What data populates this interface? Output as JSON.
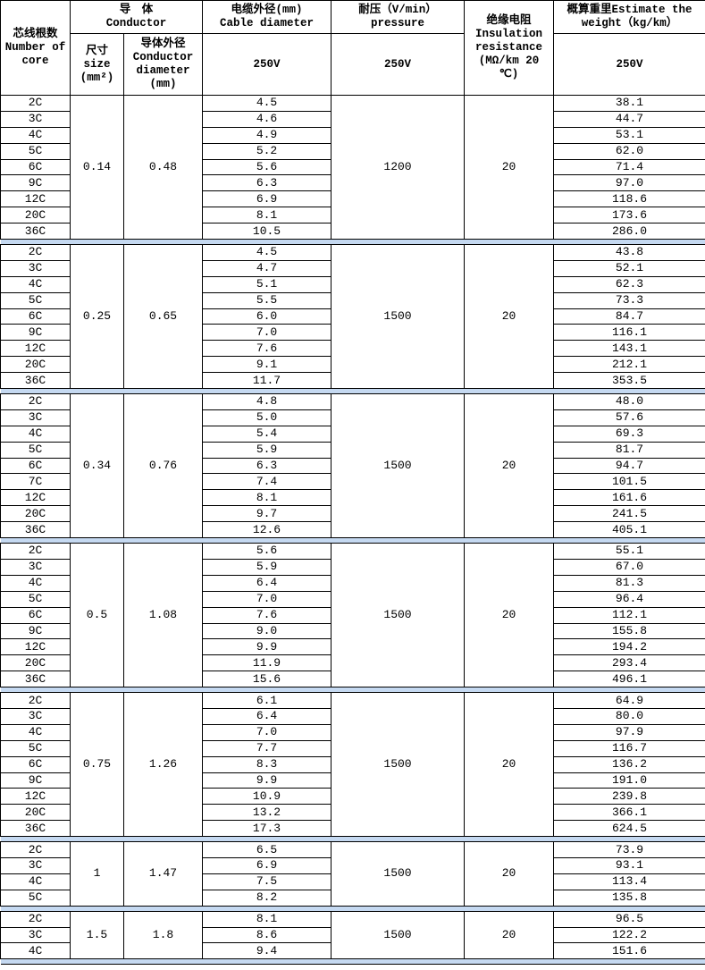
{
  "header": {
    "core": [
      "芯线根数",
      "Number of",
      "core"
    ],
    "conductor": [
      "导　体",
      "Conductor"
    ],
    "size": [
      "尺寸",
      "size",
      "(mm²)"
    ],
    "cond_diameter": [
      "导体外径",
      "Conductor",
      "diameter",
      "(mm)"
    ],
    "cable_diameter": [
      "电缆外径(mm)",
      "Cable diameter"
    ],
    "pressure": [
      "耐压（V/min）",
      "pressure"
    ],
    "insulation": [
      "绝缘电阻",
      "Insulation",
      "resistance",
      "(MΩ/km 20",
      "℃)"
    ],
    "weight": [
      "概算重里Estimate the",
      "weight（kg/km）"
    ],
    "v_cable": "250V",
    "v_pressure": "250V",
    "v_weight": "250V"
  },
  "separator_color": "#c5d9f1",
  "groups": [
    {
      "size": "0.14",
      "cond": "0.48",
      "pressure": "1200",
      "insulation": "20",
      "cores": [
        "2C",
        "3C",
        "4C",
        "5C",
        "6C",
        "9C",
        "12C",
        "20C",
        "36C"
      ],
      "diam": [
        "4.5",
        "4.6",
        "4.9",
        "5.2",
        "5.6",
        "6.3",
        "6.9",
        "8.1",
        "10.5"
      ],
      "weight": [
        "38.1",
        "44.7",
        "53.1",
        "62.0",
        "71.4",
        "97.0",
        "118.6",
        "173.6",
        "286.0"
      ]
    },
    {
      "size": "0.25",
      "cond": "0.65",
      "pressure": "1500",
      "insulation": "20",
      "cores": [
        "2C",
        "3C",
        "4C",
        "5C",
        "6C",
        "9C",
        "12C",
        "20C",
        "36C"
      ],
      "diam": [
        "4.5",
        "4.7",
        "5.1",
        "5.5",
        "6.0",
        "7.0",
        "7.6",
        "9.1",
        "11.7"
      ],
      "weight": [
        "43.8",
        "52.1",
        "62.3",
        "73.3",
        "84.7",
        "116.1",
        "143.1",
        "212.1",
        "353.5"
      ]
    },
    {
      "size": "0.34",
      "cond": "0.76",
      "pressure": "1500",
      "insulation": "20",
      "cores": [
        "2C",
        "3C",
        "4C",
        "5C",
        "6C",
        "7C",
        "12C",
        "20C",
        "36C"
      ],
      "diam": [
        "4.8",
        "5.0",
        "5.4",
        "5.9",
        "6.3",
        "7.4",
        "8.1",
        "9.7",
        "12.6"
      ],
      "weight": [
        "48.0",
        "57.6",
        "69.3",
        "81.7",
        "94.7",
        "101.5",
        "161.6",
        "241.5",
        "405.1"
      ]
    },
    {
      "size": "0.5",
      "cond": "1.08",
      "pressure": "1500",
      "insulation": "20",
      "cores": [
        "2C",
        "3C",
        "4C",
        "5C",
        "6C",
        "9C",
        "12C",
        "20C",
        "36C"
      ],
      "diam": [
        "5.6",
        "5.9",
        "6.4",
        "7.0",
        "7.6",
        "9.0",
        "9.9",
        "11.9",
        "15.6"
      ],
      "weight": [
        "55.1",
        "67.0",
        "81.3",
        "96.4",
        "112.1",
        "155.8",
        "194.2",
        "293.4",
        "496.1"
      ]
    },
    {
      "size": "0.75",
      "cond": "1.26",
      "pressure": "1500",
      "insulation": "20",
      "cores": [
        "2C",
        "3C",
        "4C",
        "5C",
        "6C",
        "9C",
        "12C",
        "20C",
        "36C"
      ],
      "diam": [
        "6.1",
        "6.4",
        "7.0",
        "7.7",
        "8.3",
        "9.9",
        "10.9",
        "13.2",
        "17.3"
      ],
      "weight": [
        "64.9",
        "80.0",
        "97.9",
        "116.7",
        "136.2",
        "191.0",
        "239.8",
        "366.1",
        "624.5"
      ]
    },
    {
      "size": "1",
      "cond": "1.47",
      "pressure": "1500",
      "insulation": "20",
      "cores": [
        "2C",
        "3C",
        "4C",
        "5C"
      ],
      "diam": [
        "6.5",
        "6.9",
        "7.5",
        "8.2"
      ],
      "weight": [
        "73.9",
        "93.1",
        "113.4",
        "135.8"
      ]
    },
    {
      "size": "1.5",
      "cond": "1.8",
      "pressure": "1500",
      "insulation": "20",
      "cores": [
        "2C",
        "3C",
        "4C"
      ],
      "diam": [
        "8.1",
        "8.6",
        "9.4"
      ],
      "weight": [
        "96.5",
        "122.2",
        "151.6"
      ]
    }
  ]
}
